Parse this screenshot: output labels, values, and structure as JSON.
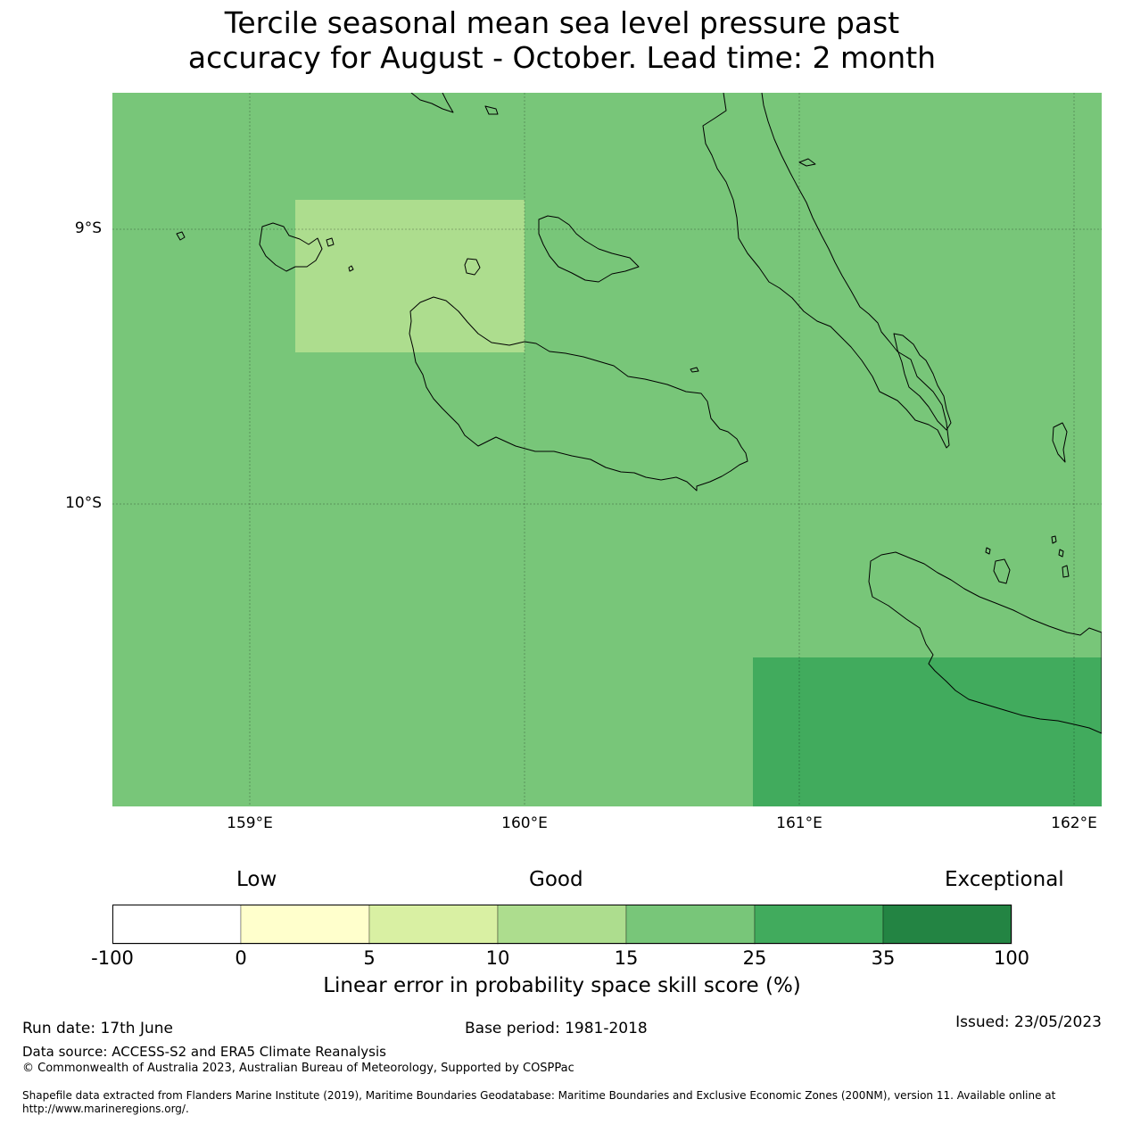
{
  "title": {
    "line1": "Tercile seasonal mean sea level pressure past",
    "line2": "accuracy for August - October. Lead time: 2 month"
  },
  "map": {
    "lat_labels": [
      "9°S",
      "10°S"
    ],
    "lon_labels": [
      "159°E",
      "160°E",
      "161°E",
      "162°E"
    ],
    "background_color": "#78c679",
    "cells": [
      {
        "name": "light-cell",
        "color": "#addd8e",
        "lon": [
          159.17,
          160.0
        ],
        "lat": [
          -8.89,
          -9.44
        ]
      },
      {
        "name": "dark-cell",
        "color": "#41ab5d",
        "lon": [
          160.83,
          162.1
        ],
        "lat": [
          -10.56,
          -11.1
        ]
      }
    ],
    "extent": {
      "lon": [
        158.5,
        162.1
      ],
      "lat": [
        -8.5,
        -11.1
      ]
    }
  },
  "colorbar": {
    "quality_labels": [
      "Low",
      "Good",
      "Exceptional"
    ],
    "ticks": [
      "-100",
      "0",
      "5",
      "10",
      "15",
      "25",
      "35",
      "100"
    ],
    "colors": [
      "#ffffff",
      "#ffffcc",
      "#d9f0a3",
      "#addd8e",
      "#78c679",
      "#41ab5d",
      "#238443"
    ],
    "label": "Linear error in probability space skill score (%)"
  },
  "footer": {
    "run_date": "Run date: 17th June",
    "base_period": "Base period: 1981-2018",
    "issued": "Issued: 23/05/2023",
    "data_source": "Data source: ACCESS-S2 and ERA5 Climate Reanalysis",
    "copyright": "© Commonwealth of Australia 2023, Australian Bureau of Meteorology, Supported by COSPPac",
    "shapefile_line1": "Shapefile data extracted from Flanders Marine Institute (2019), Maritime Boundaries Geodatabase: Maritime Boundaries and Exclusive Economic Zones (200NM), version 11. Available online at",
    "shapefile_line2": "http://www.marineregions.org/."
  }
}
